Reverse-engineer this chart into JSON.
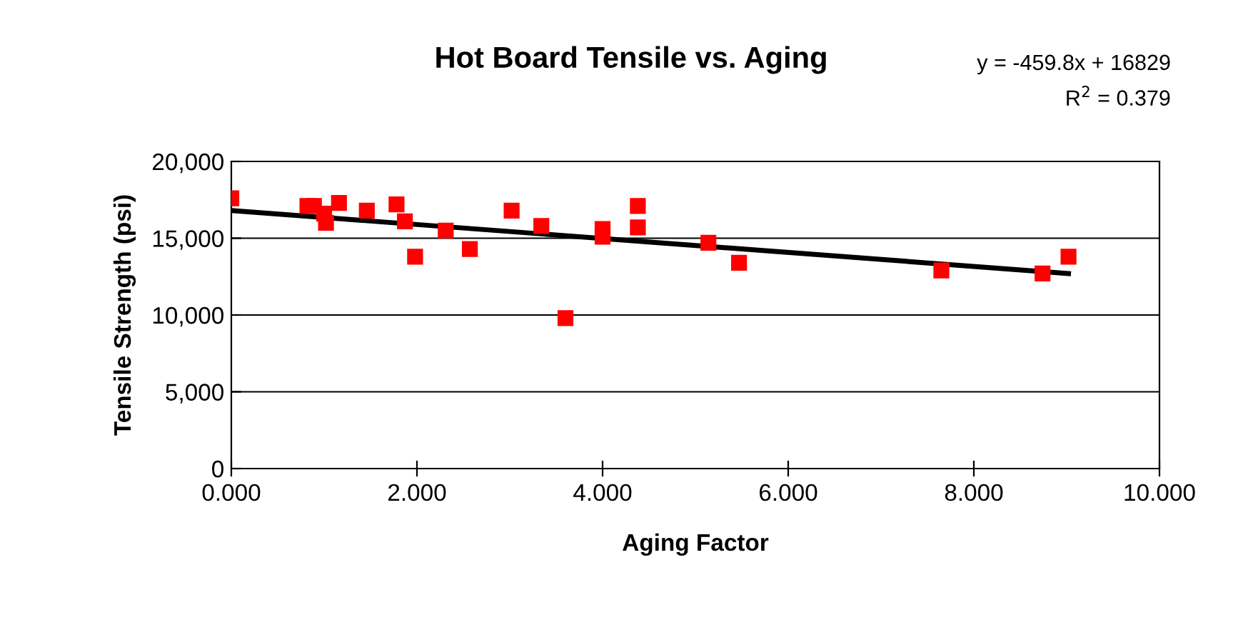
{
  "chart_data": {
    "type": "scatter",
    "title": "Hot Board Tensile vs. Aging",
    "xlabel": "Aging Factor",
    "ylabel": "Tensile Strength (psi)",
    "xlim": [
      0,
      10
    ],
    "xticks": [
      {
        "value": 0,
        "label": "0.000"
      },
      {
        "value": 2,
        "label": "2.000"
      },
      {
        "value": 4,
        "label": "4.000"
      },
      {
        "value": 6,
        "label": "6.000"
      },
      {
        "value": 8,
        "label": "8.000"
      },
      {
        "value": 10,
        "label": "10.000"
      }
    ],
    "ylim": [
      0,
      20000
    ],
    "yticks": [
      {
        "value": 0,
        "label": "0"
      },
      {
        "value": 5000,
        "label": "5,000"
      },
      {
        "value": 10000,
        "label": "10,000"
      },
      {
        "value": 15000,
        "label": "15,000"
      },
      {
        "value": 20000,
        "label": "20,000"
      }
    ],
    "grid": "y",
    "marker": "square",
    "series": [
      {
        "color": "#ff0000",
        "x": [
          0,
          0.82,
          0.89,
          1.0,
          1.02,
          1.16,
          1.46,
          1.78,
          1.87,
          1.98,
          2.31,
          2.57,
          3.02,
          3.34,
          3.6,
          4.0,
          4.0,
          4.38,
          4.38,
          5.14,
          5.47,
          7.65,
          8.74,
          9.02
        ],
        "values": [
          17600,
          17100,
          17100,
          16600,
          16000,
          17300,
          16800,
          17200,
          16100,
          13800,
          15500,
          14300,
          16800,
          15800,
          9800,
          15600,
          15100,
          17100,
          15700,
          14700,
          13400,
          12900,
          12700,
          13800
        ]
      },
      {
        "type": "line",
        "color": "#000000",
        "marker": "none",
        "x": [
          0,
          9.02
        ],
        "values": [
          16800,
          12700
        ]
      }
    ],
    "annotations": [
      "y = -459.8x + 16829",
      "R$^{2}$ = 0.379"
    ]
  }
}
